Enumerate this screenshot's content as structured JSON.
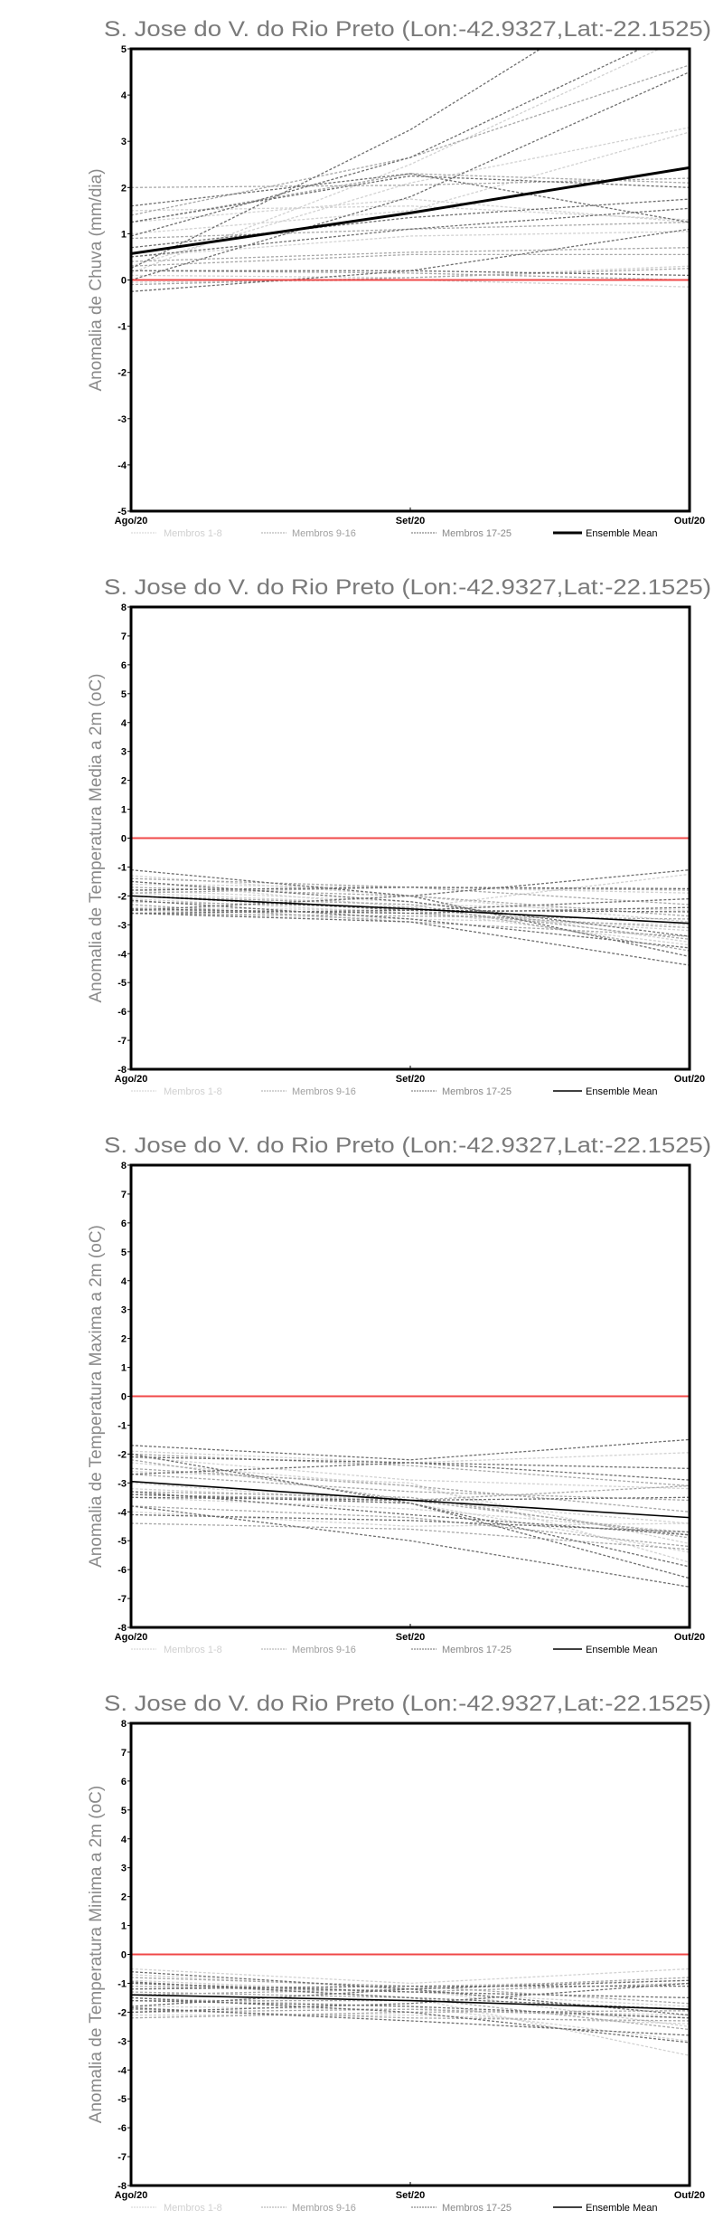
{
  "legend": {
    "members_1_8": "Membros 1-8",
    "members_9_16": "Membros 9-16",
    "members_17_25": "Membros 17-25",
    "ensemble_mean": "Ensemble Mean"
  },
  "colors": {
    "group1": "#d2d2d2",
    "group2": "#a8a8a8",
    "group3": "#6e6e6e",
    "mean": "#000000",
    "zero": "#f04848"
  },
  "chart_data": [
    {
      "type": "line",
      "title": "S. Jose do V. do Rio Preto (Lon:-42.9327,Lat:-22.1525)",
      "ylabel": "Anomalia de Chuva (mm/dia)",
      "x": [
        "Ago/20",
        "Set/20",
        "Out/20"
      ],
      "ylim": [
        -5,
        5
      ],
      "yticks": [
        "-5",
        "-4",
        "-3",
        "-2",
        "-1",
        "0",
        "1",
        "2",
        "3",
        "4",
        "5"
      ],
      "mean_bold": true,
      "ensemble_mean": [
        0.57,
        1.45,
        2.43
      ],
      "members_1_8": [
        [
          0.15,
          2.5,
          5.3
        ],
        [
          0.3,
          2.1,
          3.3
        ],
        [
          1.0,
          1.5,
          3.2
        ],
        [
          0.5,
          0.95,
          1.05
        ],
        [
          1.25,
          1.75,
          1.25
        ],
        [
          0.1,
          0.05,
          0.3
        ],
        [
          -0.05,
          0.0,
          -0.15
        ],
        [
          1.5,
          1.6,
          1.3
        ]
      ],
      "members_9_16": [
        [
          1.4,
          2.65,
          4.65
        ],
        [
          2.0,
          2.05,
          2.2
        ],
        [
          0.9,
          1.1,
          1.25
        ],
        [
          0.3,
          0.55,
          0.55
        ],
        [
          -0.1,
          0.05,
          0.25
        ],
        [
          1.25,
          2.3,
          2.1
        ],
        [
          0.4,
          0.6,
          0.7
        ],
        [
          0.2,
          0.15,
          0.0
        ]
      ],
      "members_17_25": [
        [
          0.25,
          3.25,
          7.0
        ],
        [
          0.95,
          2.65,
          5.5
        ],
        [
          0.0,
          1.8,
          4.5
        ],
        [
          1.6,
          2.3,
          1.25
        ],
        [
          0.7,
          1.35,
          1.75
        ],
        [
          -0.25,
          0.2,
          1.1
        ],
        [
          0.2,
          0.2,
          0.1
        ],
        [
          1.25,
          2.25,
          2.0
        ],
        [
          0.5,
          1.1,
          1.55
        ]
      ]
    },
    {
      "type": "line",
      "title": "S. Jose do V. do Rio Preto (Lon:-42.9327,Lat:-22.1525)",
      "ylabel": "Anomalia de Temperatura Media a 2m (oC)",
      "x": [
        "Ago/20",
        "Set/20",
        "Out/20"
      ],
      "ylim": [
        -8,
        8
      ],
      "yticks": [
        "-8",
        "-7",
        "-6",
        "-5",
        "-4",
        "-3",
        "-2",
        "-1",
        "0",
        "1",
        "2",
        "3",
        "4",
        "5",
        "6",
        "7",
        "8"
      ],
      "mean_bold": false,
      "ensemble_mean": [
        -2.0,
        -2.45,
        -2.95
      ],
      "members_1_8": [
        [
          -1.3,
          -2.0,
          -2.9
        ],
        [
          -1.8,
          -2.2,
          -3.6
        ],
        [
          -2.1,
          -2.6,
          -3.2
        ],
        [
          -1.6,
          -1.7,
          -1.9
        ],
        [
          -2.4,
          -2.5,
          -3.7
        ],
        [
          -1.9,
          -2.3,
          -2.5
        ],
        [
          -2.6,
          -2.8,
          -3.0
        ],
        [
          -1.5,
          -2.4,
          -1.25
        ]
      ],
      "members_9_16": [
        [
          -1.9,
          -1.7,
          -2.3
        ],
        [
          -2.5,
          -2.6,
          -3.1
        ],
        [
          -2.2,
          -2.4,
          -3.5
        ],
        [
          -1.7,
          -2.0,
          -2.7
        ],
        [
          -2.6,
          -2.7,
          -2.8
        ],
        [
          -2.0,
          -2.3,
          -3.9
        ],
        [
          -1.4,
          -1.7,
          -1.8
        ],
        [
          -2.3,
          -2.9,
          -3.4
        ]
      ],
      "members_17_25": [
        [
          -1.1,
          -2.0,
          -4.1
        ],
        [
          -2.5,
          -2.0,
          -1.1
        ],
        [
          -1.8,
          -1.7,
          -1.75
        ],
        [
          -2.6,
          -2.9,
          -4.4
        ],
        [
          -2.0,
          -2.5,
          -2.1
        ],
        [
          -2.45,
          -2.6,
          -2.4
        ],
        [
          -1.5,
          -2.2,
          -3.4
        ],
        [
          -2.6,
          -2.5,
          -2.55
        ],
        [
          -2.15,
          -2.8,
          -3.8
        ]
      ]
    },
    {
      "type": "line",
      "title": "S. Jose do V. do Rio Preto (Lon:-42.9327,Lat:-22.1525)",
      "ylabel": "Anomalia de Temperatura Maxima a 2m (oC)",
      "x": [
        "Ago/20",
        "Set/20",
        "Out/20"
      ],
      "ylim": [
        -8,
        8
      ],
      "yticks": [
        "-8",
        "-7",
        "-6",
        "-5",
        "-4",
        "-3",
        "-2",
        "-1",
        "0",
        "1",
        "2",
        "3",
        "4",
        "5",
        "6",
        "7",
        "8"
      ],
      "mean_bold": false,
      "ensemble_mean": [
        -2.95,
        -3.6,
        -4.2
      ],
      "members_1_8": [
        [
          -2.3,
          -3.1,
          -5.1
        ],
        [
          -1.9,
          -2.3,
          -1.95
        ],
        [
          -3.2,
          -3.6,
          -4.4
        ],
        [
          -2.6,
          -3.0,
          -5.75
        ],
        [
          -3.5,
          -3.9,
          -4.7
        ],
        [
          -2.1,
          -2.9,
          -3.2
        ],
        [
          -3.0,
          -3.7,
          -5.4
        ],
        [
          -4.0,
          -4.5,
          -4.4
        ]
      ],
      "members_9_16": [
        [
          -2.0,
          -2.4,
          -3.1
        ],
        [
          -3.4,
          -3.6,
          -4.8
        ],
        [
          -2.7,
          -3.3,
          -3.6
        ],
        [
          -3.8,
          -4.2,
          -5.2
        ],
        [
          -2.5,
          -3.1,
          -4.0
        ],
        [
          -3.3,
          -3.5,
          -4.9
        ],
        [
          -2.2,
          -3.6,
          -3.1
        ],
        [
          -4.4,
          -4.6,
          -5.3
        ]
      ],
      "members_17_25": [
        [
          -1.7,
          -2.2,
          -1.5
        ],
        [
          -2.7,
          -2.3,
          -2.5
        ],
        [
          -3.4,
          -3.7,
          -6.3
        ],
        [
          -3.8,
          -5.0,
          -6.6
        ],
        [
          -4.1,
          -4.3,
          -4.7
        ],
        [
          -2.1,
          -2.3,
          -2.9
        ],
        [
          -3.5,
          -3.6,
          -3.5
        ],
        [
          -2.0,
          -3.7,
          -5.9
        ],
        [
          -3.3,
          -4.1,
          -4.8
        ]
      ]
    },
    {
      "type": "line",
      "title": "S. Jose do V. do Rio Preto (Lon:-42.9327,Lat:-22.1525)",
      "ylabel": "Anomalia de Temperatura Minima a 2m (oC)",
      "x": [
        "Ago/20",
        "Set/20",
        "Out/20"
      ],
      "ylim": [
        -8,
        8
      ],
      "yticks": [
        "-8",
        "-7",
        "-6",
        "-5",
        "-4",
        "-3",
        "-2",
        "-1",
        "0",
        "1",
        "2",
        "3",
        "4",
        "5",
        "6",
        "7",
        "8"
      ],
      "mean_bold": false,
      "ensemble_mean": [
        -1.4,
        -1.6,
        -1.9
      ],
      "members_1_8": [
        [
          -0.5,
          -1.0,
          -0.5
        ],
        [
          -0.7,
          -1.2,
          -2.5
        ],
        [
          -1.0,
          -1.5,
          -3.5
        ],
        [
          -1.5,
          -1.8,
          -3.0
        ],
        [
          -2.1,
          -2.1,
          -2.4
        ],
        [
          -1.2,
          -1.1,
          -0.9
        ],
        [
          -1.8,
          -1.9,
          -2.1
        ],
        [
          -0.9,
          -1.3,
          -1.8
        ]
      ],
      "members_9_16": [
        [
          -1.1,
          -1.3,
          -1.0
        ],
        [
          -1.6,
          -1.6,
          -1.9
        ],
        [
          -2.0,
          -1.9,
          -2.2
        ],
        [
          -1.3,
          -1.5,
          -2.6
        ],
        [
          -0.8,
          -1.1,
          -1.7
        ],
        [
          -1.9,
          -2.2,
          -2.3
        ],
        [
          -1.4,
          -1.2,
          -0.8
        ],
        [
          -2.2,
          -2.0,
          -1.95
        ]
      ],
      "members_17_25": [
        [
          -0.6,
          -1.2,
          -2.1
        ],
        [
          -1.8,
          -1.2,
          -0.9
        ],
        [
          -1.5,
          -2.0,
          -3.05
        ],
        [
          -1.0,
          -1.3,
          -1.5
        ],
        [
          -2.0,
          -1.7,
          -1.0
        ],
        [
          -1.6,
          -1.8,
          -2.2
        ],
        [
          -1.2,
          -1.1,
          -1.1
        ],
        [
          -1.85,
          -2.3,
          -2.8
        ],
        [
          -0.95,
          -1.5,
          -1.9
        ]
      ]
    }
  ]
}
